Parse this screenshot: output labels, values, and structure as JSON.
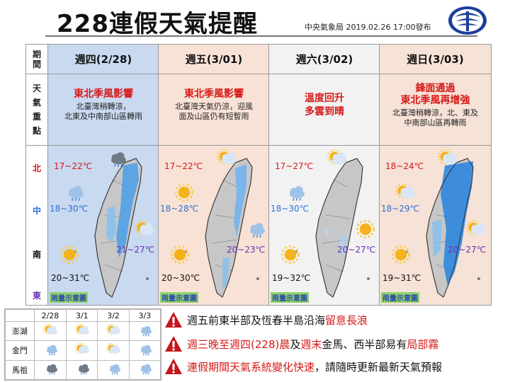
{
  "header": {
    "title": "228連假天氣提醒",
    "issuer": "中央氣象局 2019.02.26 17:00發布"
  },
  "row_labels": {
    "period": "期間",
    "focus": "天氣重點"
  },
  "region_labels": [
    "北",
    "中",
    "南",
    "東"
  ],
  "days": [
    {
      "label": "週四(2/28)",
      "focus_main": [
        "東北季風影響"
      ],
      "focus_sub": [
        "北臺灣稍轉涼，",
        "北東及中南部山區轉雨"
      ],
      "temps": {
        "north": "17~22℃",
        "central": "18~30℃",
        "east": "21~27℃",
        "south": "20~31℃"
      },
      "rain_note": "雨量示意圖"
    },
    {
      "label": "週五(3/01)",
      "focus_main": [
        "東北季風影響"
      ],
      "focus_sub": [
        "北臺灣天氣仍涼，迎風",
        "面及山區仍有短暫雨"
      ],
      "temps": {
        "north": "17~22℃",
        "central": "18~28℃",
        "east": "20~23℃",
        "south": "20~30℃"
      },
      "rain_note": "雨量示意圖"
    },
    {
      "label": "週六(3/02)",
      "focus_main": [
        "溫度回升",
        "多雲到晴"
      ],
      "focus_sub": [],
      "temps": {
        "north": "17~27℃",
        "central": "18~30℃",
        "east": "20~27℃",
        "south": "19~32℃"
      },
      "rain_note": "雨量示意圖"
    },
    {
      "label": "週日(3/03)",
      "focus_main": [
        "鋒面通過",
        "東北季風再增強"
      ],
      "focus_sub": [
        "北臺灣稍轉涼，北、東及",
        "中南部山區再轉雨"
      ],
      "temps": {
        "north": "18~24℃",
        "central": "18~29℃",
        "east": "20~27℃",
        "south": "19~31℃"
      },
      "rain_note": "雨量示意圖"
    }
  ],
  "outer_islands": {
    "dates": [
      "2/28",
      "3/1",
      "3/2",
      "3/3"
    ],
    "rows": [
      {
        "name": "澎湖",
        "icons": [
          "sun-cloud",
          "sun-cloud",
          "sun-cloud",
          "cloud-rain"
        ]
      },
      {
        "name": "金門",
        "icons": [
          "cloud-rain",
          "sun-cloud",
          "sun-cloud",
          "cloud-rain"
        ]
      },
      {
        "name": "馬祖",
        "icons": [
          "dark-cloud-rain",
          "dark-cloud-rain",
          "cloud-rain",
          "cloud-rain"
        ]
      }
    ]
  },
  "warnings": [
    {
      "parts": [
        {
          "t": "週五前東半部及恆春半島沿海",
          "red": false
        },
        {
          "t": "留意長浪",
          "red": true
        }
      ]
    },
    {
      "parts": [
        {
          "t": "週三晚至週四(228)晨",
          "red": true
        },
        {
          "t": "及",
          "red": false
        },
        {
          "t": "週末",
          "red": true
        },
        {
          "t": "金馬、西半部易有",
          "red": false
        },
        {
          "t": "局部霧",
          "red": true
        }
      ]
    },
    {
      "parts": [
        {
          "t": "連假期間天氣系統變化快速",
          "red": true
        },
        {
          "t": "，請隨時更新最新天氣預報",
          "red": false
        }
      ]
    }
  ],
  "colors": {
    "col_bg": [
      "#c9d9f0",
      "#f8e2d6",
      "#f2f2f2",
      "#f6e2d6"
    ],
    "warning_red": "#d71818"
  }
}
